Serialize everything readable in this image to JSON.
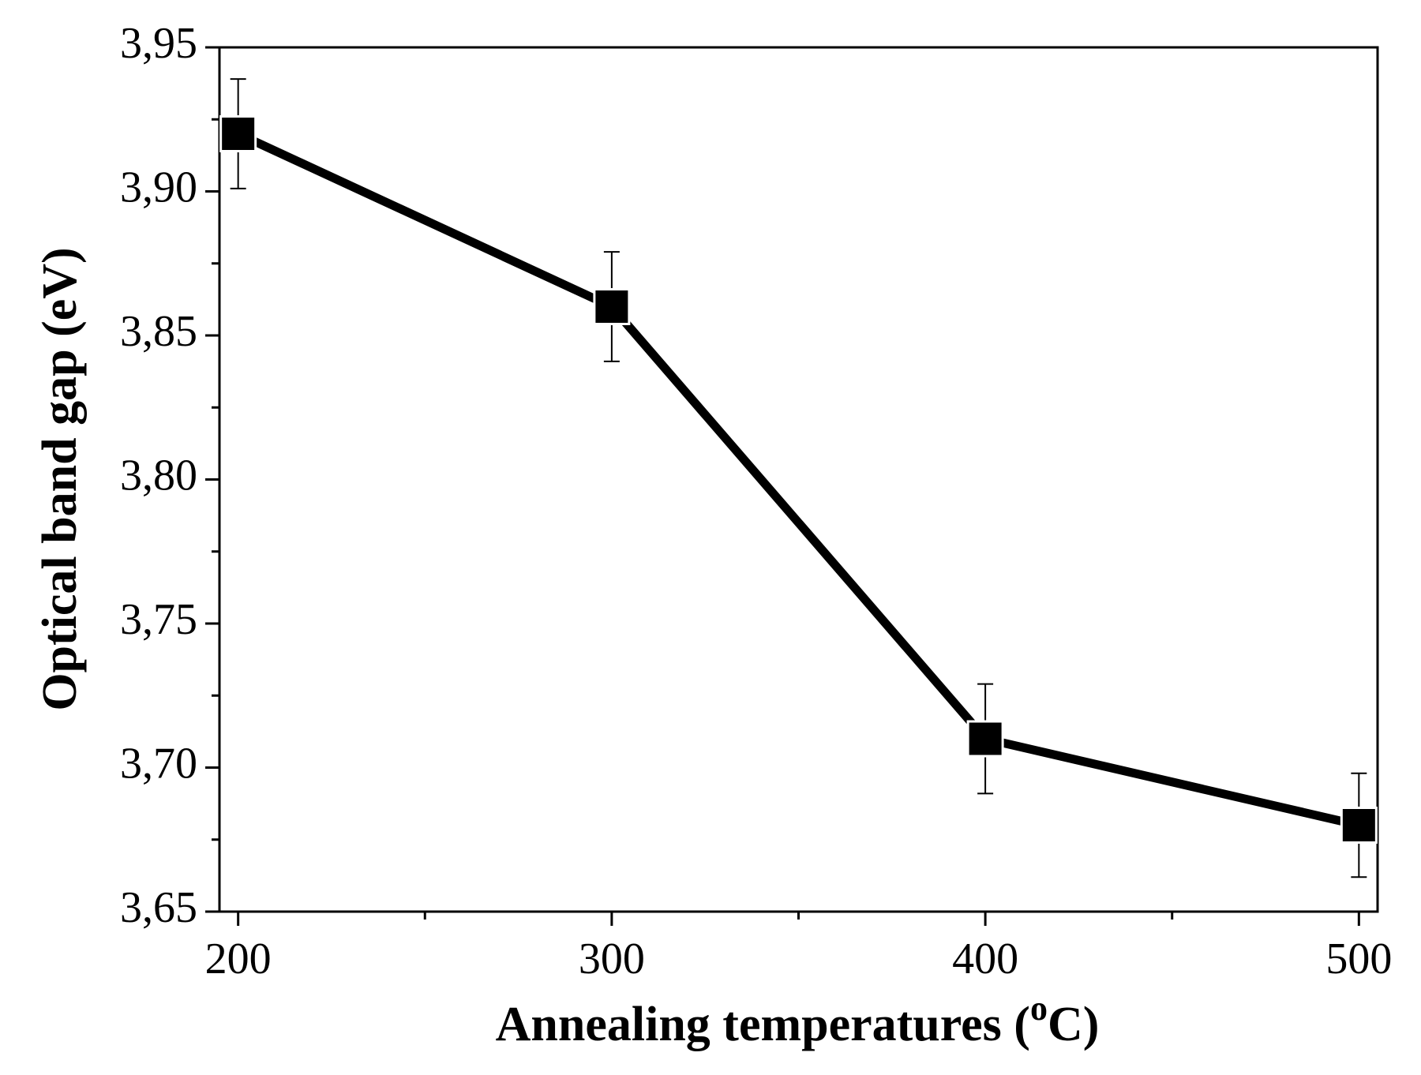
{
  "chart_data": {
    "type": "line",
    "title": "",
    "xlabel": {
      "main": "Annealing temperatures (",
      "sup": "o",
      "unit": "C)"
    },
    "ylabel": "Optical band gap (eV)",
    "xlim": [
      195,
      505
    ],
    "ylim": [
      3.65,
      3.95
    ],
    "xticks": [
      200,
      300,
      400,
      500
    ],
    "xtick_labels": [
      "200",
      "300",
      "400",
      "500"
    ],
    "yticks": [
      3.65,
      3.7,
      3.75,
      3.8,
      3.85,
      3.9,
      3.95
    ],
    "ytick_labels": [
      "3,65",
      "3,70",
      "3,75",
      "3,80",
      "3,85",
      "3,90",
      "3,95"
    ],
    "grid": false,
    "marker": "square",
    "color": "#000000",
    "series": [
      {
        "name": "Optical band gap",
        "x": [
          200,
          300,
          400,
          500
        ],
        "y": [
          3.92,
          3.86,
          3.71,
          3.68
        ],
        "error": [
          0.019,
          0.019,
          0.019,
          0.018
        ]
      }
    ]
  }
}
